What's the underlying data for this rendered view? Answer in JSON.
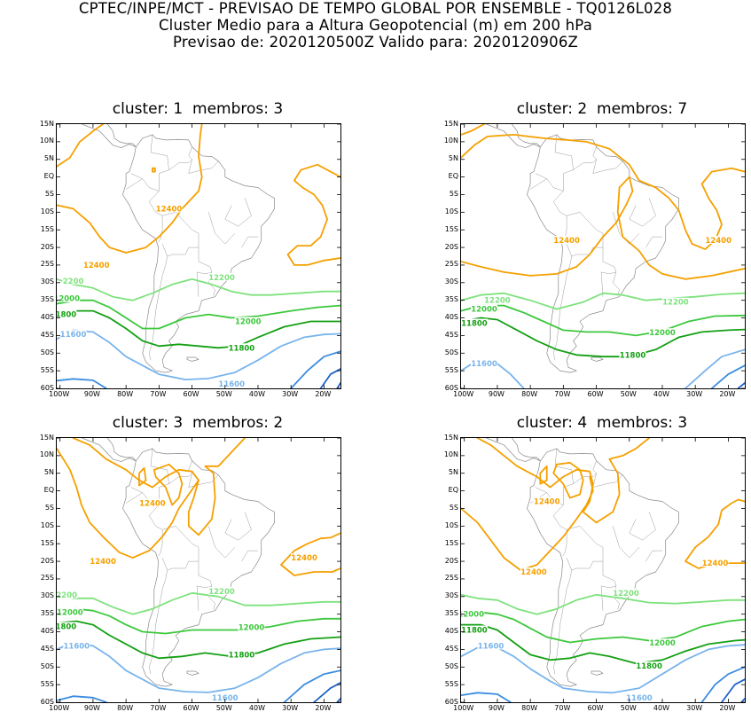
{
  "header": {
    "line1": "CPTEC/INPE/MCT - PREVISAO DE TEMPO GLOBAL POR ENSEMBLE - TQ0126L028",
    "line2": "Cluster Medio para a Altura Geopotencial (m) em 200 hPa",
    "line3": "Previsao de: 2020120500Z   Valido para: 2020120906Z"
  },
  "axes": {
    "lat_labels": [
      "15N",
      "10N",
      "5N",
      "EQ",
      "5S",
      "10S",
      "15S",
      "20S",
      "25S",
      "30S",
      "35S",
      "40S",
      "45S",
      "50S",
      "55S",
      "60S"
    ],
    "lon_labels": [
      "100W",
      "90W",
      "80W",
      "70W",
      "60W",
      "50W",
      "40W",
      "30W",
      "20W"
    ]
  },
  "colors": {
    "c12400": "#f5a000",
    "c12200": "#7ee27e",
    "c12000": "#3cc83c",
    "c11800": "#14a014",
    "c11600": "#78b4ec",
    "c11400": "#3c8ce0",
    "c11200": "#1e64c8",
    "coast": "#888888"
  },
  "panels": [
    {
      "title": "cluster: 1  membros: 3",
      "labels": [
        {
          "text": "12400",
          "color": "c12400"
        },
        {
          "text": "12400",
          "color": "c12400"
        },
        {
          "text": "2200",
          "color": "c12200"
        },
        {
          "text": "12200",
          "color": "c12200"
        },
        {
          "text": "12000",
          "color": "c12000"
        },
        {
          "text": "12000",
          "color": "c12000"
        },
        {
          "text": "11800",
          "color": "c11800"
        },
        {
          "text": "11800",
          "color": "c11800"
        },
        {
          "text": "11600",
          "color": "c11600"
        },
        {
          "text": "11600",
          "color": "c11600"
        }
      ]
    },
    {
      "title": "cluster: 2  membros: 7",
      "labels": [
        {
          "text": "12400",
          "color": "c12400"
        },
        {
          "text": "12400",
          "color": "c12400"
        },
        {
          "text": "12200",
          "color": "c12200"
        },
        {
          "text": "12200",
          "color": "c12200"
        },
        {
          "text": "12000",
          "color": "c12000"
        },
        {
          "text": "12000",
          "color": "c12000"
        },
        {
          "text": "11800",
          "color": "c11800"
        },
        {
          "text": "11800",
          "color": "c11800"
        },
        {
          "text": "11600",
          "color": "c11600"
        }
      ]
    },
    {
      "title": "cluster: 3  membros: 2",
      "labels": [
        {
          "text": "12400",
          "color": "c12400"
        },
        {
          "text": "12400",
          "color": "c12400"
        },
        {
          "text": "12400",
          "color": "c12400"
        },
        {
          "text": "2200",
          "color": "c12200"
        },
        {
          "text": "12200",
          "color": "c12200"
        },
        {
          "text": "12000",
          "color": "c12000"
        },
        {
          "text": "12000",
          "color": "c12000"
        },
        {
          "text": "11800",
          "color": "c11800"
        },
        {
          "text": "11800",
          "color": "c11800"
        },
        {
          "text": "11600",
          "color": "c11600"
        },
        {
          "text": "11600",
          "color": "c11600"
        }
      ]
    },
    {
      "title": "cluster: 4  membros: 3",
      "labels": [
        {
          "text": "12400",
          "color": "c12400"
        },
        {
          "text": "12400",
          "color": "c12400"
        },
        {
          "text": "12400",
          "color": "c12400"
        },
        {
          "text": "12200",
          "color": "c12200"
        },
        {
          "text": "12000",
          "color": "c12000"
        },
        {
          "text": "12000",
          "color": "c12000"
        },
        {
          "text": "11800",
          "color": "c11800"
        },
        {
          "text": "11800",
          "color": "c11800"
        },
        {
          "text": "11600",
          "color": "c11600"
        },
        {
          "text": "11600",
          "color": "c11600"
        }
      ]
    }
  ]
}
